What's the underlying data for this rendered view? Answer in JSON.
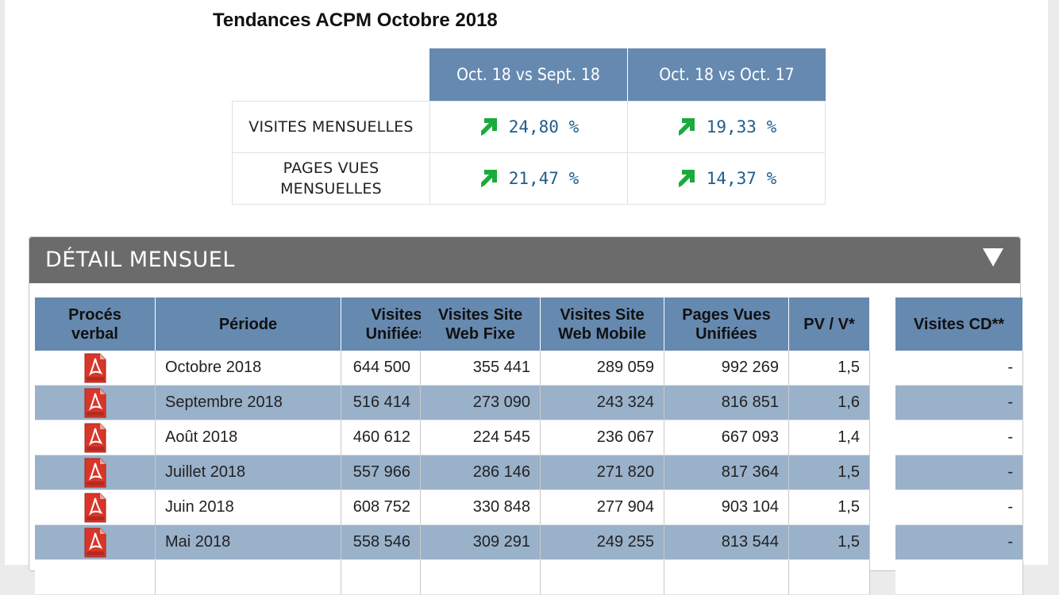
{
  "title": "Tendances ACPM Octobre 2018",
  "trends": {
    "headers": [
      "Oct. 18 vs Sept. 18",
      "Oct. 18 vs Oct. 17"
    ],
    "rows": [
      {
        "label": "VISITES MENSUELLES",
        "values": [
          "24,80 %",
          "19,33 %"
        ]
      },
      {
        "label_line1": "PAGES VUES",
        "label_line2": "MENSUELLES",
        "values": [
          "21,47 %",
          "14,37 %"
        ]
      }
    ],
    "arrow_color": "#1aab3c",
    "value_color": "#1f5d8c"
  },
  "detail": {
    "title": "DÉTAIL MENSUEL",
    "toggle_icon": "triangle-down-icon",
    "columns": [
      {
        "l1": "Procés",
        "l2": "verbal"
      },
      {
        "l1": "Période",
        "l2": ""
      },
      {
        "l1": "Visites",
        "l2": "Unifiées"
      },
      {
        "l1": "Visites Site",
        "l2": "Web Fixe"
      },
      {
        "l1": "Visites Site",
        "l2": "Web Mobile"
      },
      {
        "l1": "Pages Vues",
        "l2": "Unifiées"
      },
      {
        "l1": "PV / V*",
        "l2": ""
      },
      {
        "l1": "Visites CD**",
        "l2": ""
      }
    ],
    "rows": [
      {
        "periode": "Octobre 2018",
        "visites": "644 500",
        "fixe": "355 441",
        "mobile": "289 059",
        "pv": "992 269",
        "ratio": "1,5",
        "cd": "-"
      },
      {
        "periode": "Septembre 2018",
        "visites": "516 414",
        "fixe": "273 090",
        "mobile": "243 324",
        "pv": "816 851",
        "ratio": "1,6",
        "cd": "-"
      },
      {
        "periode": "Août 2018",
        "visites": "460 612",
        "fixe": "224 545",
        "mobile": "236 067",
        "pv": "667 093",
        "ratio": "1,4",
        "cd": "-"
      },
      {
        "periode": "Juillet 2018",
        "visites": "557 966",
        "fixe": "286 146",
        "mobile": "271 820",
        "pv": "817 364",
        "ratio": "1,5",
        "cd": "-"
      },
      {
        "periode": "Juin 2018",
        "visites": "608 752",
        "fixe": "330 848",
        "mobile": "277 904",
        "pv": "903 104",
        "ratio": "1,5",
        "cd": "-"
      },
      {
        "periode": "Mai 2018",
        "visites": "558 546",
        "fixe": "309 291",
        "mobile": "249 255",
        "pv": "813 544",
        "ratio": "1,5",
        "cd": "-"
      }
    ],
    "pdf_icon": "pdf-file-icon",
    "header_color": "#6689b0",
    "alt_row_color": "#9ab1ca"
  }
}
